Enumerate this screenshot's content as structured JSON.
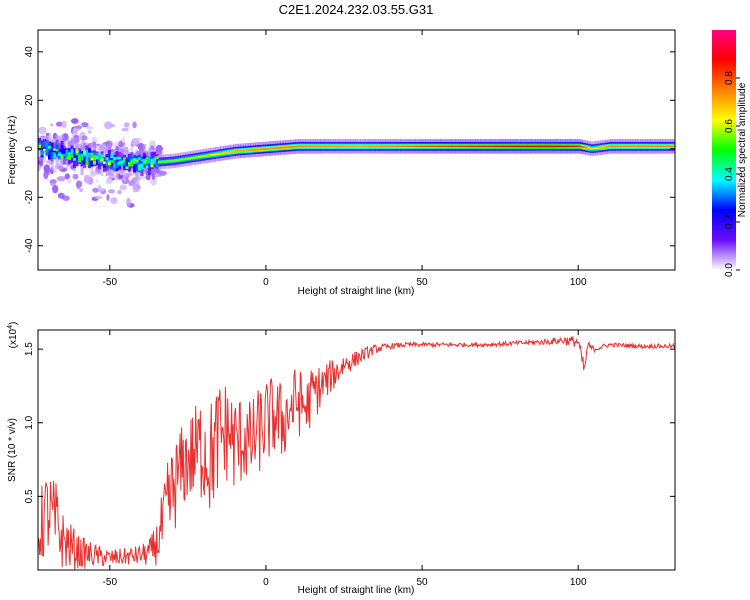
{
  "title": "C2E1.2024.232.03.55.G31",
  "chart_data": [
    {
      "type": "heatmap",
      "xlabel": "Height of straight line (km)",
      "ylabel": "Frequency (Hz)",
      "xlim": [
        -73,
        131
      ],
      "ylim": [
        -50,
        49
      ],
      "xticks": [
        -50,
        0,
        50,
        100
      ],
      "yticks": [
        -40,
        -20,
        0,
        20,
        40
      ],
      "colorbar": {
        "label": "Normalized spectral amplitude",
        "range": [
          0.0,
          1.0
        ],
        "ticks": [
          "0.0",
          "0.2",
          "0.4",
          "0.6",
          "0.8"
        ],
        "tick_values": [
          0.0,
          0.2,
          0.4,
          0.6,
          0.8
        ],
        "colormap": [
          "#ffffff",
          "#6a0dff",
          "#0000ff",
          "#00ffff",
          "#00ff00",
          "#ffff00",
          "#ff8000",
          "#ff0000",
          "#ff0080"
        ]
      },
      "ridge": {
        "x": [
          -73,
          -65,
          -55,
          -45,
          -40,
          -30,
          -20,
          -10,
          0,
          10,
          30,
          50,
          70,
          90,
          100,
          104,
          110,
          131
        ],
        "freq": [
          0,
          -2,
          -4,
          -6,
          -6,
          -5,
          -3,
          -1,
          0,
          1,
          1,
          1,
          1,
          1,
          1,
          0,
          1,
          1
        ],
        "amplitude": [
          0.5,
          0.5,
          0.55,
          0.5,
          0.55,
          0.55,
          0.6,
          0.7,
          0.75,
          0.75,
          0.7,
          0.8,
          0.85,
          0.9,
          0.85,
          0.6,
          0.75,
          0.75
        ]
      }
    },
    {
      "type": "line",
      "xlabel": "Height of straight line (km)",
      "ylabel": "SNR (10 * v/v)",
      "y_multiplier": "(x10^4)",
      "xlim": [
        -73,
        131
      ],
      "ylim": [
        0.0,
        1.63
      ],
      "xticks": [
        -50,
        0,
        50,
        100
      ],
      "yticks": [
        0.5,
        1.0,
        1.5
      ],
      "ytick_labels": [
        "0.5",
        "1.0",
        "1.5"
      ],
      "line_color": "#e8302f",
      "x": [
        -73,
        -70,
        -67,
        -65,
        -60,
        -55,
        -50,
        -45,
        -40,
        -37,
        -35,
        -33,
        -31,
        -28,
        -25,
        -22,
        -20,
        -18,
        -15,
        -12,
        -10,
        -7,
        -5,
        -2,
        0,
        3,
        5,
        8,
        10,
        13,
        15,
        18,
        20,
        23,
        25,
        28,
        30,
        33,
        35,
        40,
        45,
        50,
        60,
        70,
        80,
        90,
        95,
        100,
        101,
        102,
        103,
        105,
        110,
        120,
        131
      ],
      "y": [
        0.25,
        0.4,
        0.3,
        0.2,
        0.12,
        0.1,
        0.08,
        0.09,
        0.1,
        0.12,
        0.18,
        0.3,
        0.45,
        0.65,
        0.75,
        0.8,
        0.85,
        0.75,
        0.9,
        0.95,
        0.85,
        0.9,
        0.85,
        0.95,
        1.0,
        1.05,
        1.0,
        1.1,
        1.15,
        1.1,
        1.2,
        1.25,
        1.3,
        1.35,
        1.4,
        1.42,
        1.45,
        1.48,
        1.5,
        1.52,
        1.53,
        1.53,
        1.53,
        1.53,
        1.54,
        1.55,
        1.56,
        1.55,
        1.45,
        1.35,
        1.52,
        1.5,
        1.53,
        1.52,
        1.52
      ],
      "noise_amplitude": [
        0.25,
        0.3,
        0.3,
        0.2,
        0.12,
        0.08,
        0.06,
        0.06,
        0.07,
        0.1,
        0.15,
        0.25,
        0.35,
        0.3,
        0.3,
        0.35,
        0.4,
        0.4,
        0.4,
        0.35,
        0.35,
        0.3,
        0.3,
        0.3,
        0.3,
        0.28,
        0.28,
        0.25,
        0.25,
        0.2,
        0.2,
        0.15,
        0.12,
        0.1,
        0.08,
        0.06,
        0.05,
        0.04,
        0.03,
        0.02,
        0.015,
        0.015,
        0.015,
        0.015,
        0.015,
        0.02,
        0.03,
        0.04,
        0.05,
        0.05,
        0.04,
        0.02,
        0.015,
        0.015,
        0.015
      ]
    }
  ]
}
